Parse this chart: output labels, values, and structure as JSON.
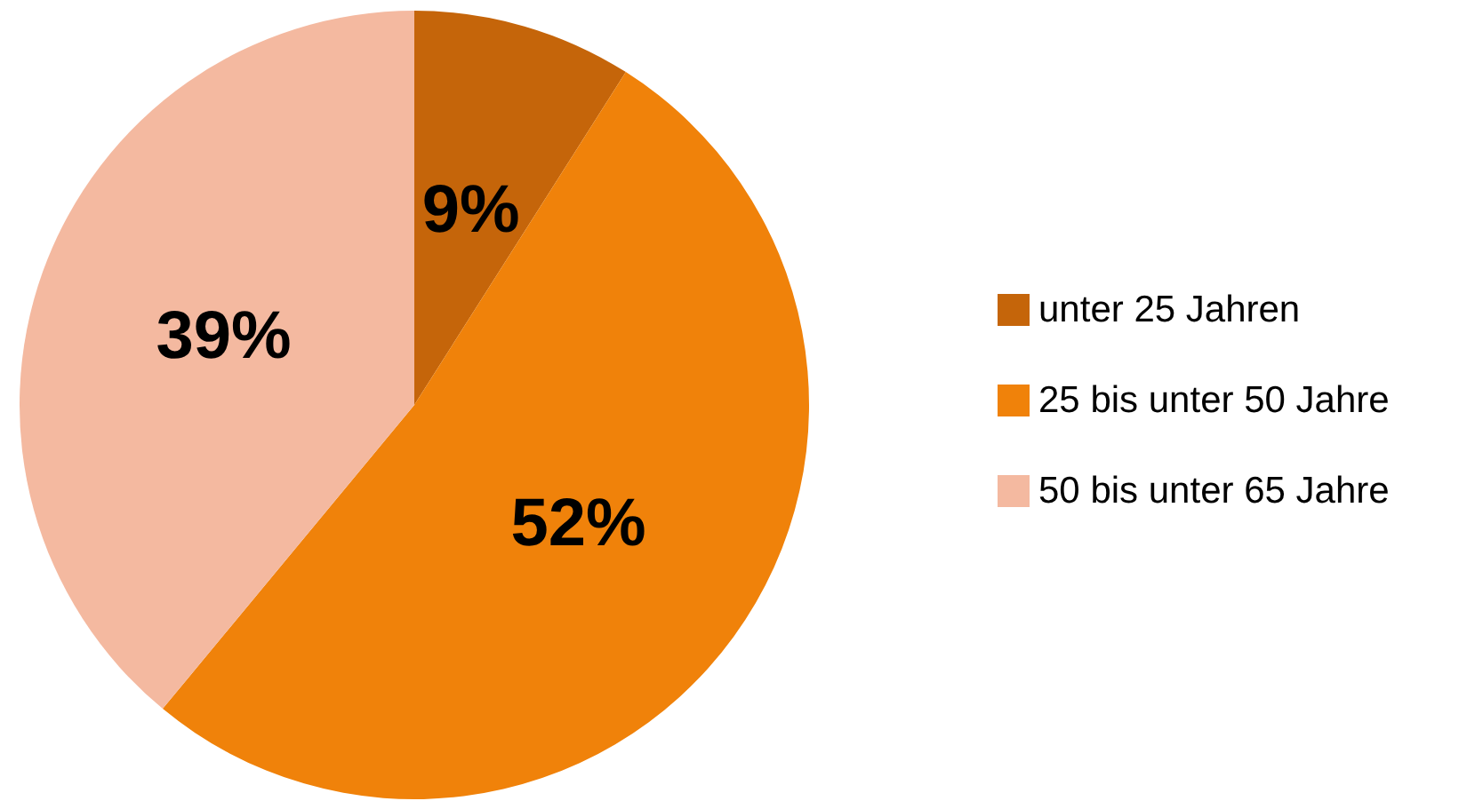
{
  "chart_data": {
    "type": "pie",
    "categories": [
      "unter 25 Jahren",
      "25 bis unter 50 Jahre",
      "50 bis unter 65 Jahre"
    ],
    "values": [
      9,
      52,
      39
    ],
    "colors": [
      "#c5650a",
      "#f0820a",
      "#f4b9a0"
    ],
    "value_labels": [
      "9%",
      "52%",
      "39%"
    ],
    "legend": "right"
  }
}
